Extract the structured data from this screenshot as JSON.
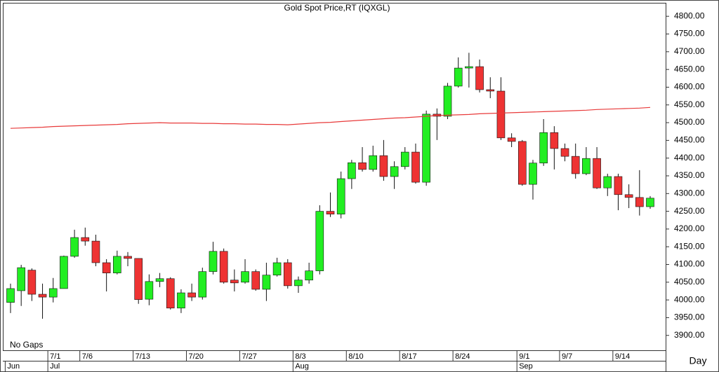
{
  "chart_data": {
    "type": "candlestick",
    "title": "Gold Spot Price,RT  (IQXGL)",
    "note": "No Gaps",
    "x_axis_label": "Day",
    "categories": [
      null,
      null,
      null,
      null,
      "7/1",
      null,
      null,
      "7/6",
      null,
      null,
      null,
      null,
      "7/13",
      null,
      null,
      null,
      null,
      "7/20",
      null,
      null,
      null,
      null,
      "7/27",
      null,
      null,
      null,
      null,
      "8/3",
      null,
      null,
      null,
      null,
      "8/10",
      null,
      null,
      null,
      null,
      "8/17",
      null,
      null,
      null,
      null,
      "8/24",
      null,
      null,
      null,
      null,
      null,
      "9/1",
      null,
      null,
      null,
      "9/7",
      null,
      null,
      null,
      null,
      "9/14",
      null,
      null,
      null
    ],
    "month_categories": [
      "Jun",
      null,
      null,
      null,
      "Jul",
      null,
      null,
      null,
      null,
      null,
      null,
      null,
      null,
      null,
      null,
      null,
      null,
      null,
      null,
      null,
      null,
      null,
      null,
      null,
      null,
      null,
      null,
      "Aug",
      null,
      null,
      null,
      null,
      null,
      null,
      null,
      null,
      null,
      null,
      null,
      null,
      null,
      null,
      null,
      null,
      null,
      null,
      null,
      null,
      "Sep",
      null,
      null,
      null,
      null,
      null,
      null,
      null,
      null,
      null,
      null,
      null,
      null
    ],
    "open": [
      3993,
      4026,
      4084,
      4016,
      4008,
      4032,
      4123,
      4176,
      4166,
      4105,
      4076,
      4123,
      4117,
      4002,
      4052,
      4060,
      3977,
      4020,
      4008,
      4080,
      4137,
      4056,
      4050,
      4080,
      4030,
      4070,
      4105,
      4040,
      4056,
      4082,
      4250,
      4242,
      4342,
      4387,
      4368,
      4407,
      4348,
      4376,
      4417,
      4332,
      4524,
      4518,
      4603,
      4654,
      4658,
      4593,
      4589,
      4457,
      4447,
      4326,
      4386,
      4472,
      4427,
      4405,
      4356,
      4399,
      4316,
      4348,
      4297,
      4289,
      4263
    ],
    "high": [
      4046,
      4099,
      4089,
      4046,
      4062,
      4125,
      4198,
      4204,
      4184,
      4115,
      4139,
      4135,
      4117,
      4072,
      4076,
      4064,
      4030,
      4046,
      4091,
      4164,
      4145,
      4086,
      4115,
      4086,
      4105,
      4119,
      4115,
      4066,
      4105,
      4267,
      4303,
      4362,
      4395,
      4431,
      4435,
      4451,
      4391,
      4431,
      4441,
      4534,
      4540,
      4612,
      4684,
      4697,
      4678,
      4628,
      4628,
      4470,
      4451,
      4395,
      4510,
      4490,
      4441,
      4441,
      4431,
      4431,
      4356,
      4356,
      4326,
      4366,
      4293
    ],
    "low": [
      3963,
      3983,
      3997,
      3947,
      3993,
      4032,
      4119,
      4153,
      4095,
      4024,
      4072,
      4095,
      3989,
      3985,
      4036,
      3973,
      3963,
      3997,
      4001,
      4072,
      4046,
      4024,
      4046,
      4026,
      3997,
      4066,
      4032,
      4020,
      4046,
      4072,
      4234,
      4230,
      4313,
      4362,
      4362,
      4336,
      4313,
      4368,
      4328,
      4322,
      4451,
      4510,
      4599,
      4599,
      4585,
      4569,
      4451,
      4431,
      4322,
      4283,
      4378,
      4368,
      4391,
      4342,
      4352,
      4313,
      4293,
      4253,
      4259,
      4238,
      4257
    ],
    "close": [
      4032,
      4091,
      4016,
      4008,
      4032,
      4123,
      4176,
      4166,
      4105,
      4076,
      4123,
      4117,
      4001,
      4052,
      4060,
      3977,
      4020,
      4008,
      4080,
      4137,
      4050,
      4048,
      4080,
      4030,
      4070,
      4105,
      4040,
      4056,
      4082,
      4250,
      4242,
      4342,
      4387,
      4368,
      4407,
      4348,
      4376,
      4417,
      4332,
      4524,
      4518,
      4603,
      4654,
      4658,
      4593,
      4589,
      4457,
      4447,
      4326,
      4386,
      4472,
      4427,
      4405,
      4356,
      4399,
      4316,
      4348,
      4297,
      4289,
      4263,
      4287
    ],
    "up_color": "#22ee22",
    "down_color": "#ee3333",
    "moving_average": {
      "color": "#e83a3a",
      "values": [
        4484,
        4485,
        4486,
        4487,
        4489,
        4490,
        4491,
        4492,
        4493,
        4494,
        4495,
        4497,
        4498,
        4499,
        4500,
        4499,
        4499,
        4499,
        4498,
        4498,
        4497,
        4497,
        4496,
        4496,
        4495,
        4495,
        4494,
        4496,
        4498,
        4500,
        4501,
        4503,
        4505,
        4507,
        4509,
        4511,
        4513,
        4514,
        4516,
        4518,
        4520,
        4521,
        4522,
        4523,
        4525,
        4526,
        4527,
        4528,
        4529,
        4530,
        4531,
        4532,
        4533,
        4534,
        4535,
        4537,
        4538,
        4539,
        4540,
        4541,
        4543
      ]
    },
    "ylim": [
      3858,
      4836
    ],
    "yticks": [
      {
        "value": 3900,
        "label": "3900.00"
      },
      {
        "value": 3950,
        "label": "3950.00"
      },
      {
        "value": 4000,
        "label": "4000.00"
      },
      {
        "value": 4050,
        "label": "4050.00"
      },
      {
        "value": 4100,
        "label": "4100.00"
      },
      {
        "value": 4150,
        "label": "4150.00"
      },
      {
        "value": 4200,
        "label": "4200.00"
      },
      {
        "value": 4250,
        "label": "4250.00"
      },
      {
        "value": 4300,
        "label": "4300.00"
      },
      {
        "value": 4350,
        "label": "4350.00"
      },
      {
        "value": 4400,
        "label": "4400.00"
      },
      {
        "value": 4450,
        "label": "4450.00"
      },
      {
        "value": 4500,
        "label": "4500.00"
      },
      {
        "value": 4550,
        "label": "4550.00"
      },
      {
        "value": 4600,
        "label": "4600.00"
      },
      {
        "value": 4650,
        "label": "4650.00"
      },
      {
        "value": 4700,
        "label": "4700.00"
      },
      {
        "value": 4750,
        "label": "4750.00"
      },
      {
        "value": 4800,
        "label": "4800.00"
      }
    ]
  }
}
